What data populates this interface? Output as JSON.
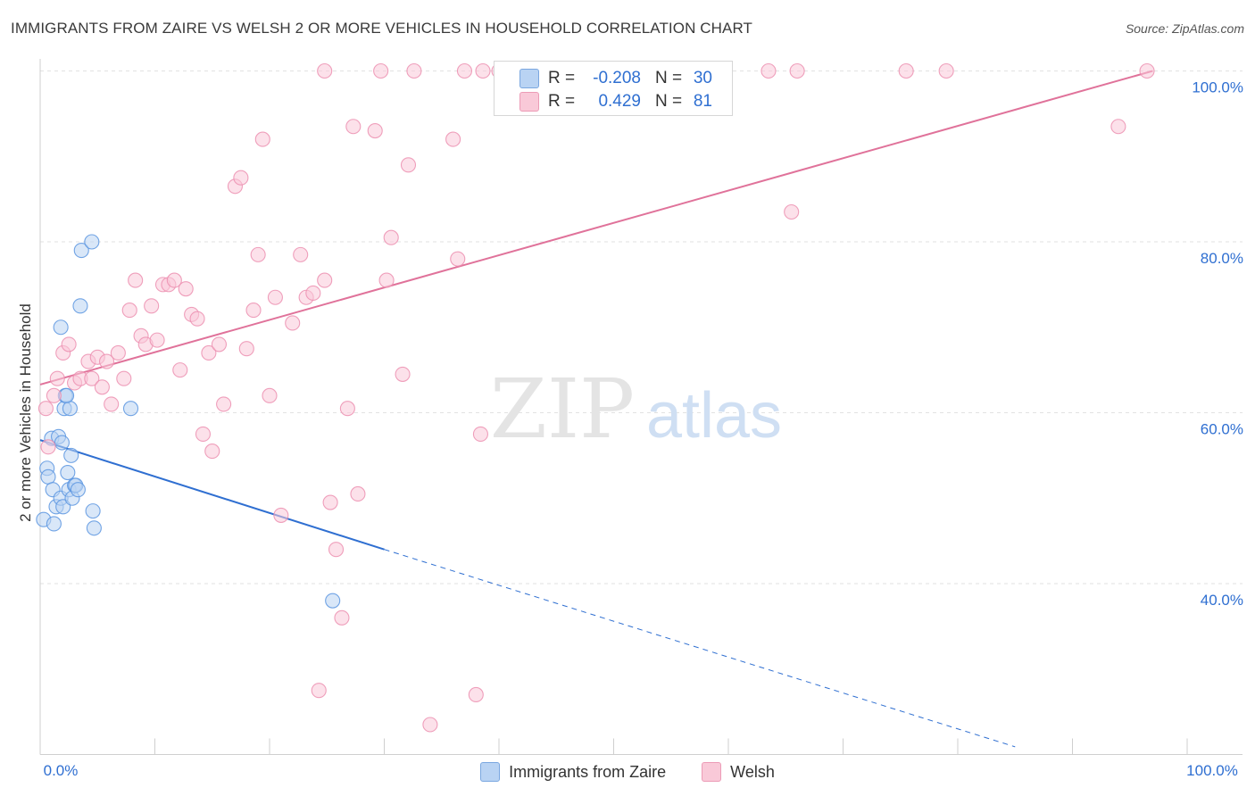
{
  "title": "IMMIGRANTS FROM ZAIRE VS WELSH 2 OR MORE VEHICLES IN HOUSEHOLD CORRELATION CHART",
  "source": "Source: ZipAtlas.com",
  "watermark": {
    "zip": "ZIP",
    "atlas": "atlas"
  },
  "stats_legend": [
    {
      "r_label": "R =",
      "r_value": "-0.208",
      "n_label": "N =",
      "n_value": "30",
      "color": "#b9d3f3"
    },
    {
      "r_label": "R =",
      "r_value": "0.429",
      "n_label": "N =",
      "n_value": "81",
      "color": "#f9c9d8"
    }
  ],
  "bottom_legend": [
    {
      "label": "Immigrants from Zaire",
      "color": "#b9d3f3"
    },
    {
      "label": "Welsh",
      "color": "#f9c9d8"
    }
  ],
  "chart_data": {
    "type": "scatter",
    "title": "IMMIGRANTS FROM ZAIRE VS WELSH 2 OR MORE VEHICLES IN HOUSEHOLD CORRELATION CHART",
    "xlabel": "",
    "ylabel": "2 or more Vehicles in Household",
    "xlim": [
      0,
      100
    ],
    "ylim": [
      20,
      101
    ],
    "x_tick_labels": [
      "0.0%",
      "100.0%"
    ],
    "y_ticks": [
      40,
      60,
      80,
      100
    ],
    "y_tick_labels": [
      "40.0%",
      "60.0%",
      "80.0%",
      "100.0%"
    ],
    "grid": true,
    "legend_position": "top-center",
    "series": [
      {
        "name": "Immigrants from Zaire",
        "color": "#5b95e0",
        "fill": "#b9d3f3",
        "trend": {
          "x": [
            0,
            30
          ],
          "y": [
            56.8,
            44.0
          ],
          "dashed_extension_to": [
            85,
            20.9
          ]
        },
        "points": [
          [
            0.3,
            47.5
          ],
          [
            0.6,
            53.5
          ],
          [
            0.7,
            52.5
          ],
          [
            1.0,
            57.0
          ],
          [
            1.1,
            51.0
          ],
          [
            1.2,
            47.0
          ],
          [
            1.4,
            49.0
          ],
          [
            1.6,
            57.2
          ],
          [
            1.8,
            50.0
          ],
          [
            2.0,
            49.0
          ],
          [
            1.9,
            56.5
          ],
          [
            2.1,
            60.5
          ],
          [
            2.2,
            62.0
          ],
          [
            2.4,
            53.0
          ],
          [
            2.5,
            51.0
          ],
          [
            2.7,
            55.0
          ],
          [
            2.6,
            60.5
          ],
          [
            2.8,
            50.0
          ],
          [
            3.0,
            51.5
          ],
          [
            3.1,
            51.5
          ],
          [
            3.3,
            51.0
          ],
          [
            3.5,
            72.5
          ],
          [
            3.6,
            79.0
          ],
          [
            4.5,
            80.0
          ],
          [
            4.6,
            48.5
          ],
          [
            4.7,
            46.5
          ],
          [
            1.8,
            70.0
          ],
          [
            7.9,
            60.5
          ],
          [
            2.3,
            62.0
          ],
          [
            25.5,
            38.0
          ]
        ]
      },
      {
        "name": "Welsh",
        "color": "#ec8fb0",
        "fill": "#f9c9d8",
        "trend": {
          "x": [
            0,
            97
          ],
          "y": [
            63.3,
            100.0
          ]
        },
        "points": [
          [
            0.5,
            60.5
          ],
          [
            0.7,
            56.0
          ],
          [
            1.2,
            62.0
          ],
          [
            1.5,
            64.0
          ],
          [
            2.0,
            67.0
          ],
          [
            2.5,
            68.0
          ],
          [
            3.0,
            63.5
          ],
          [
            3.5,
            64.0
          ],
          [
            4.2,
            66.0
          ],
          [
            4.5,
            64.0
          ],
          [
            5.0,
            66.5
          ],
          [
            5.4,
            63.0
          ],
          [
            5.8,
            66.0
          ],
          [
            6.2,
            61.0
          ],
          [
            6.8,
            67.0
          ],
          [
            7.3,
            64.0
          ],
          [
            7.8,
            72.0
          ],
          [
            8.3,
            75.5
          ],
          [
            8.8,
            69.0
          ],
          [
            9.2,
            68.0
          ],
          [
            9.7,
            72.5
          ],
          [
            10.2,
            68.5
          ],
          [
            10.7,
            75.0
          ],
          [
            11.2,
            75.0
          ],
          [
            11.7,
            75.5
          ],
          [
            12.2,
            65.0
          ],
          [
            12.7,
            74.5
          ],
          [
            13.2,
            71.5
          ],
          [
            13.7,
            71.0
          ],
          [
            14.2,
            57.5
          ],
          [
            14.7,
            67.0
          ],
          [
            15.0,
            55.5
          ],
          [
            15.6,
            68.0
          ],
          [
            16.0,
            61.0
          ],
          [
            17.0,
            86.5
          ],
          [
            17.5,
            87.5
          ],
          [
            18.0,
            67.5
          ],
          [
            18.6,
            72.0
          ],
          [
            19.0,
            78.5
          ],
          [
            19.4,
            92.0
          ],
          [
            20.0,
            62.0
          ],
          [
            20.5,
            73.5
          ],
          [
            21.0,
            48.0
          ],
          [
            22.0,
            70.5
          ],
          [
            22.7,
            78.5
          ],
          [
            23.2,
            73.5
          ],
          [
            23.8,
            74.0
          ],
          [
            24.3,
            27.5
          ],
          [
            24.8,
            75.5
          ],
          [
            24.8,
            100.0
          ],
          [
            25.3,
            49.5
          ],
          [
            25.8,
            44.0
          ],
          [
            26.3,
            36.0
          ],
          [
            26.8,
            60.5
          ],
          [
            27.3,
            93.5
          ],
          [
            27.7,
            50.5
          ],
          [
            29.2,
            93.0
          ],
          [
            29.7,
            100.0
          ],
          [
            30.2,
            75.5
          ],
          [
            30.6,
            80.5
          ],
          [
            31.6,
            64.5
          ],
          [
            32.1,
            89.0
          ],
          [
            32.6,
            100.0
          ],
          [
            34.0,
            23.5
          ],
          [
            36.0,
            92.0
          ],
          [
            36.4,
            78.0
          ],
          [
            37.0,
            100.0
          ],
          [
            38.0,
            27.0
          ],
          [
            38.4,
            57.5
          ],
          [
            38.6,
            100.0
          ],
          [
            40.0,
            100.0
          ],
          [
            41.0,
            100.0
          ],
          [
            41.5,
            100.0
          ],
          [
            47.0,
            100.0
          ],
          [
            63.5,
            100.0
          ],
          [
            65.5,
            83.5
          ],
          [
            66.0,
            100.0
          ],
          [
            75.5,
            100.0
          ],
          [
            79.0,
            100.0
          ],
          [
            94.0,
            93.5
          ],
          [
            96.5,
            100.0
          ]
        ]
      }
    ]
  }
}
